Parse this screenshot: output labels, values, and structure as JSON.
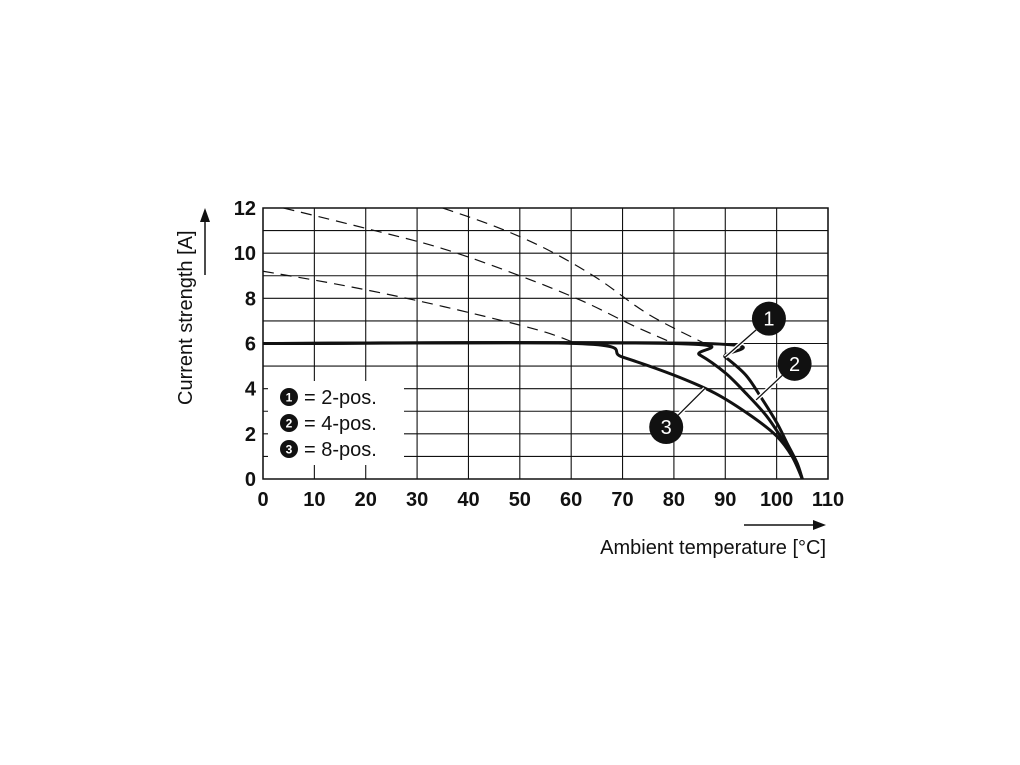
{
  "chart_data": {
    "type": "line",
    "xlabel": "Ambient temperature [°C]",
    "ylabel": "Current strength [A]",
    "xlim": [
      0,
      110
    ],
    "ylim": [
      0,
      12
    ],
    "x_ticks": [
      "0",
      "10",
      "20",
      "30",
      "40",
      "50",
      "60",
      "70",
      "80",
      "90",
      "100",
      "110"
    ],
    "y_ticks": [
      "0",
      "2",
      "4",
      "6",
      "8",
      "10",
      "12"
    ],
    "grid": true,
    "grid_x_step": 10,
    "grid_y_step": 1,
    "legend_position": "lower-left",
    "legend": [
      {
        "marker": "1",
        "label": "= 2-pos."
      },
      {
        "marker": "2",
        "label": "= 4-pos."
      },
      {
        "marker": "3",
        "label": "= 8-pos."
      }
    ],
    "series": [
      {
        "marker": "1",
        "style": "solid",
        "points": [
          [
            0,
            6
          ],
          [
            86,
            6
          ],
          [
            90,
            5.4
          ],
          [
            94,
            4.6
          ],
          [
            97,
            3.6
          ],
          [
            100,
            2.5
          ],
          [
            102,
            1.6
          ],
          [
            104,
            0.7
          ],
          [
            105,
            0
          ]
        ]
      },
      {
        "marker": "2",
        "style": "solid",
        "points": [
          [
            0,
            6
          ],
          [
            80,
            6
          ],
          [
            85,
            5.5
          ],
          [
            90,
            4.7
          ],
          [
            94,
            3.8
          ],
          [
            98,
            2.8
          ],
          [
            101,
            1.8
          ],
          [
            103.5,
            0.9
          ],
          [
            105,
            0
          ]
        ]
      },
      {
        "marker": "3",
        "style": "solid",
        "points": [
          [
            0,
            6
          ],
          [
            61,
            6
          ],
          [
            70,
            5.4
          ],
          [
            80,
            4.6
          ],
          [
            88,
            3.8
          ],
          [
            95,
            2.8
          ],
          [
            100,
            1.9
          ],
          [
            103,
            1.0
          ],
          [
            105,
            0
          ]
        ]
      },
      {
        "marker": "1",
        "style": "dashed",
        "points": [
          [
            35,
            12
          ],
          [
            45,
            11.2
          ],
          [
            55,
            10.2
          ],
          [
            65,
            8.9
          ],
          [
            75,
            7.3
          ],
          [
            86,
            6
          ]
        ]
      },
      {
        "marker": "2",
        "style": "dashed",
        "points": [
          [
            4,
            12
          ],
          [
            20,
            11.1
          ],
          [
            35,
            10.2
          ],
          [
            50,
            9.0
          ],
          [
            62,
            7.9
          ],
          [
            72,
            6.8
          ],
          [
            80,
            6
          ]
        ]
      },
      {
        "marker": "3",
        "style": "dashed",
        "points": [
          [
            0,
            9.2
          ],
          [
            15,
            8.6
          ],
          [
            30,
            7.9
          ],
          [
            45,
            7.1
          ],
          [
            55,
            6.5
          ],
          [
            61,
            6
          ]
        ]
      }
    ],
    "callouts": [
      {
        "marker": "1",
        "x": 98.5,
        "y": 7.1,
        "target": [
          90,
          5.4
        ]
      },
      {
        "marker": "2",
        "x": 103.5,
        "y": 5.1,
        "target": [
          96,
          3.5
        ]
      },
      {
        "marker": "3",
        "x": 78.5,
        "y": 2.3,
        "target": [
          86,
          4.0
        ]
      }
    ]
  }
}
